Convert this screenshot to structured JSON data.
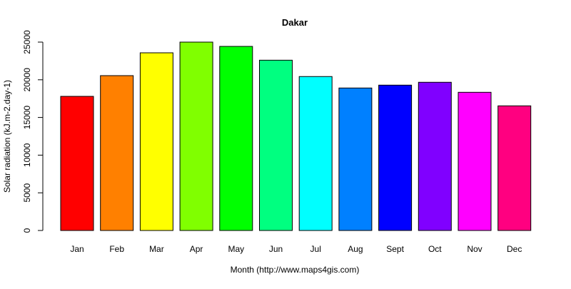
{
  "chart_data": {
    "type": "bar",
    "title": "Dakar",
    "xlabel": "Month (http://www.maps4gis.com)",
    "ylabel": "Solar radiation (kJ.m-2.day-1)",
    "ylim": [
      0,
      25000
    ],
    "yticks": [
      0,
      5000,
      10000,
      15000,
      20000,
      25000
    ],
    "grid": false,
    "legend": null,
    "categories": [
      "Jan",
      "Feb",
      "Mar",
      "Apr",
      "May",
      "Jun",
      "Jul",
      "Aug",
      "Sept",
      "Oct",
      "Nov",
      "Dec"
    ],
    "values": [
      17800,
      20550,
      23580,
      25000,
      24430,
      22600,
      20430,
      18910,
      19290,
      19670,
      18340,
      16540
    ],
    "colors": [
      "#FF0000",
      "#FF8000",
      "#FFFF00",
      "#80FF00",
      "#00FF00",
      "#00FF80",
      "#00FFFF",
      "#0080FF",
      "#0000FF",
      "#8000FF",
      "#FF00FF",
      "#FF0080"
    ]
  }
}
